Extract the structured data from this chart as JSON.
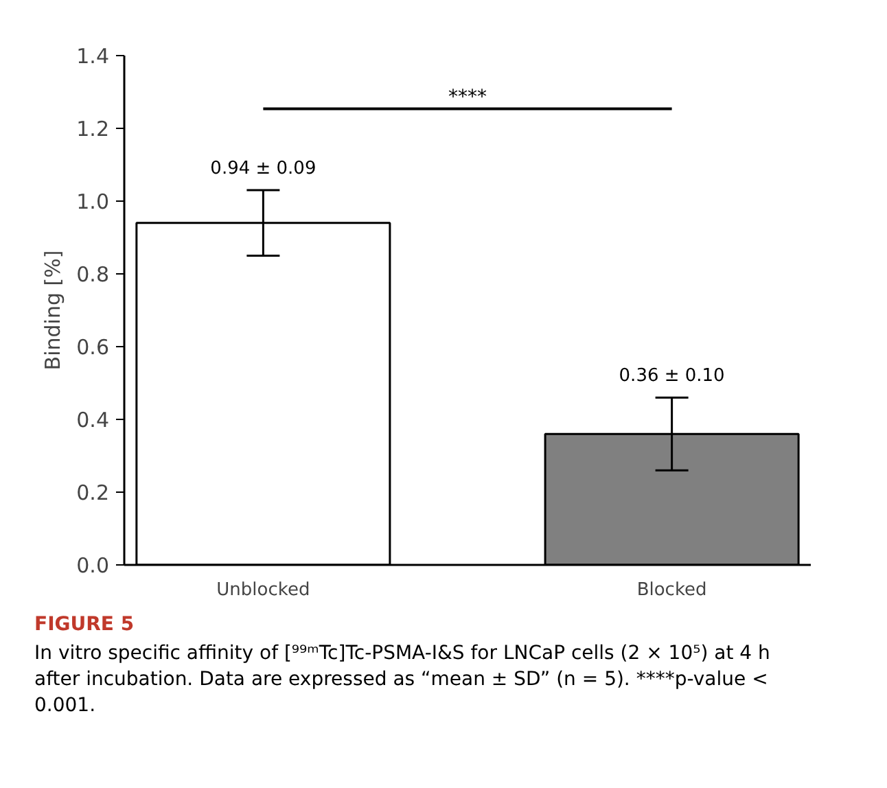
{
  "chart_data": {
    "type": "bar",
    "ylabel": "Binding [%]",
    "categories": [
      "Unblocked",
      "Blocked"
    ],
    "values": [
      0.94,
      0.36
    ],
    "errors": [
      0.09,
      0.1
    ],
    "colors": [
      "#ffffff",
      "#808080"
    ],
    "value_labels": [
      "0.94 ± 0.09",
      "0.36 ± 0.10"
    ],
    "ylim": [
      0,
      1.4
    ],
    "yticks": [
      {
        "value": 0,
        "label": "0.0"
      },
      0.2,
      0.4,
      0.6,
      0.8,
      {
        "value": 1,
        "label": "1.0"
      },
      1.2,
      1.4
    ],
    "grid": false,
    "annotations": [
      "****",
      "FIGURE 5",
      "In vitro specific affinity of [⁹⁹ᵐTc]Tc-PSMA-I&S for LNCaP cells (2 × 10⁵) at 4 h after incubation. Data are expressed as “mean ± SD” (n = 5). ****p-value < 0.001."
    ]
  }
}
